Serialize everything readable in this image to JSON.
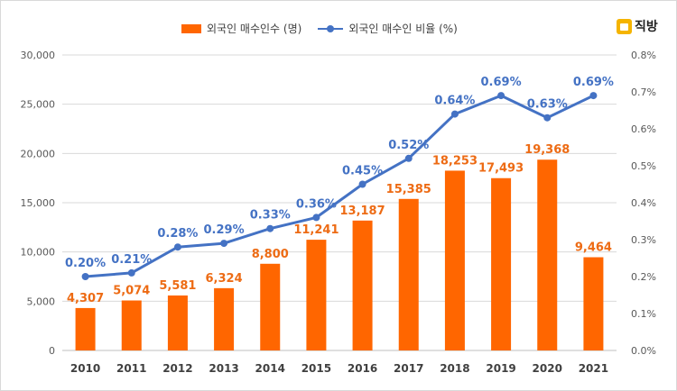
{
  "legend": {
    "bar_label": "외국인 매수인수 (명)",
    "line_label": "외국인 매수인 비율 (%)"
  },
  "brand": {
    "name": "직방"
  },
  "colors": {
    "bar": "#ff6600",
    "line": "#4472c4",
    "bar_label": "#ed6b14",
    "line_label": "#4472c4",
    "grid": "#d9d9d9",
    "axis_text": "#595959"
  },
  "chart_data": {
    "type": "bar+line",
    "categories": [
      "2010",
      "2011",
      "2012",
      "2013",
      "2014",
      "2015",
      "2016",
      "2017",
      "2018",
      "2019",
      "2020",
      "2021"
    ],
    "series": [
      {
        "name": "외국인 매수인수 (명)",
        "type": "bar",
        "axis": "left",
        "values": [
          4307,
          5074,
          5581,
          6324,
          8800,
          11241,
          13187,
          15385,
          18253,
          17493,
          19368,
          9464
        ],
        "labels": [
          "4,307",
          "5,074",
          "5,581",
          "6,324",
          "8,800",
          "11,241",
          "13,187",
          "15,385",
          "18,253",
          "17,493",
          "19,368",
          "9,464"
        ]
      },
      {
        "name": "외국인 매수인 비율 (%)",
        "type": "line",
        "axis": "right",
        "values": [
          0.2,
          0.21,
          0.28,
          0.29,
          0.33,
          0.36,
          0.45,
          0.52,
          0.64,
          0.69,
          0.63,
          0.69
        ],
        "labels": [
          "0.20%",
          "0.21%",
          "0.28%",
          "0.29%",
          "0.33%",
          "0.36%",
          "0.45%",
          "0.52%",
          "0.64%",
          "0.69%",
          "0.63%",
          "0.69%"
        ]
      }
    ],
    "y_left": {
      "ylim": [
        0,
        30000
      ],
      "ticks": [
        "0",
        "5,000",
        "10,000",
        "15,000",
        "20,000",
        "25,000",
        "30,000"
      ]
    },
    "y_right": {
      "ylim": [
        0,
        0.8
      ],
      "ticks": [
        "0.0%",
        "0.1%",
        "0.2%",
        "0.3%",
        "0.4%",
        "0.5%",
        "0.6%",
        "0.7%",
        "0.8%"
      ]
    },
    "grid": true,
    "legend_position": "top-center"
  }
}
